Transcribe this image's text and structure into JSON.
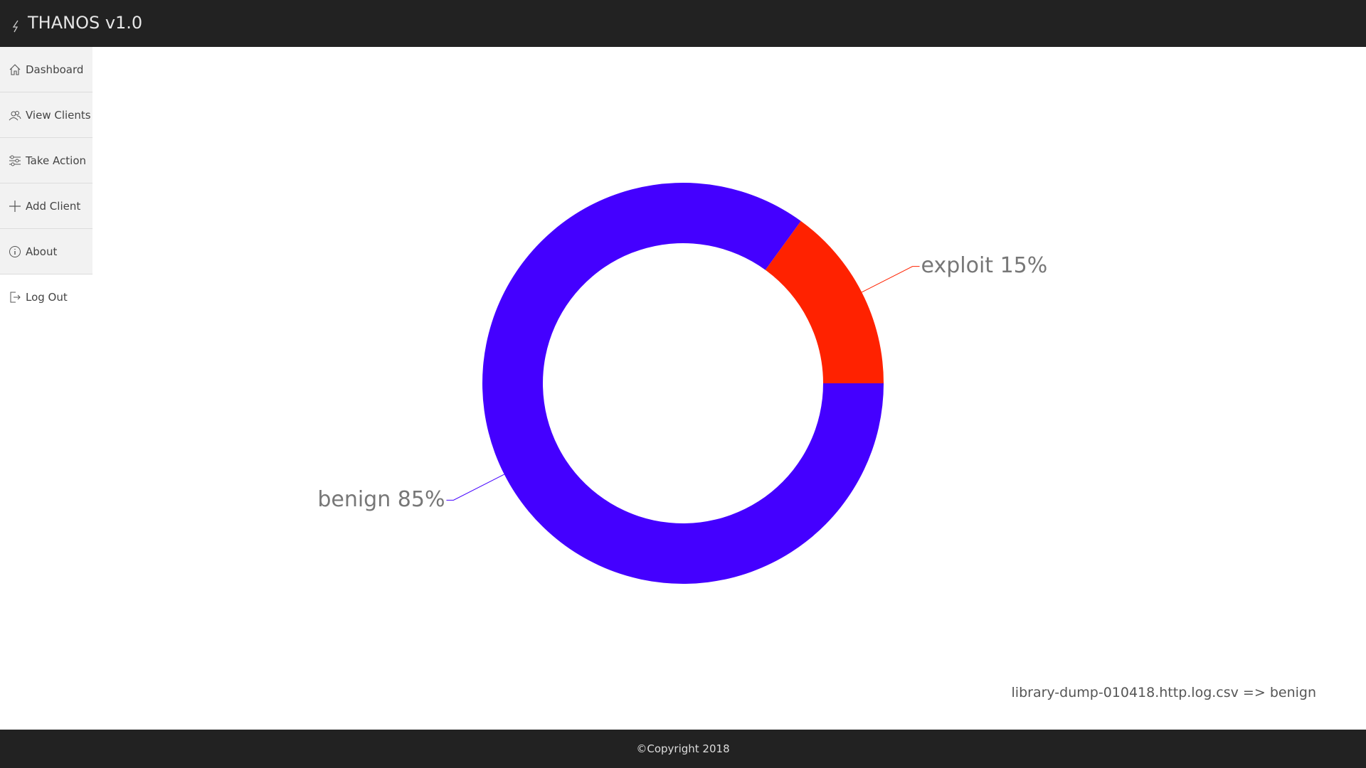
{
  "header": {
    "title": "THANOS v1.0"
  },
  "nav": [
    "Dashboard",
    "View Clients",
    "Take Action",
    "Add Client",
    "About",
    "Log Out"
  ],
  "chart_data": {
    "type": "donut",
    "values": [
      85,
      15
    ],
    "value_labels": [
      "benign 85%",
      "exploit 15%"
    ],
    "colors": [
      "#4400ff",
      "#ff2200"
    ]
  },
  "status": "library-dump-010418.http.log.csv => benign",
  "footer": "©Copyright 2018"
}
